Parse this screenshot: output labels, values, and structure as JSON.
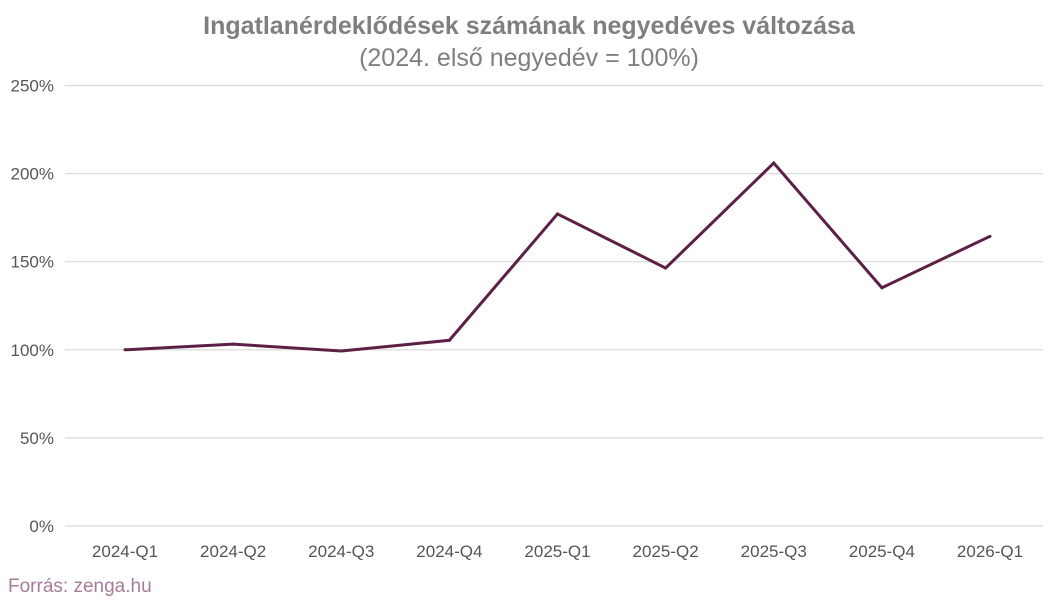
{
  "chart_data": {
    "type": "line",
    "title": "Ingatlanérdeklődések számának negyedéves változása",
    "subtitle": "(2024. első negyedév = 100%)",
    "categories": [
      "2024-Q1",
      "2024-Q2",
      "2024-Q3",
      "2024-Q4",
      "2025-Q1",
      "2025-Q2",
      "2025-Q3",
      "2025-Q4",
      "2026-Q1"
    ],
    "series": [
      {
        "values": [
          100,
          103.2,
          99.3,
          105.4,
          177.1,
          146.4,
          206,
          135.2,
          164.4
        ],
        "color": "#5c1f45"
      }
    ],
    "yticks": [
      "0%",
      "50%",
      "100%",
      "150%",
      "200%",
      "250%"
    ],
    "ylim": [
      0,
      250
    ],
    "grid": true,
    "xlabel": "",
    "ylabel": ""
  },
  "source": "Forrás: zenga.hu"
}
